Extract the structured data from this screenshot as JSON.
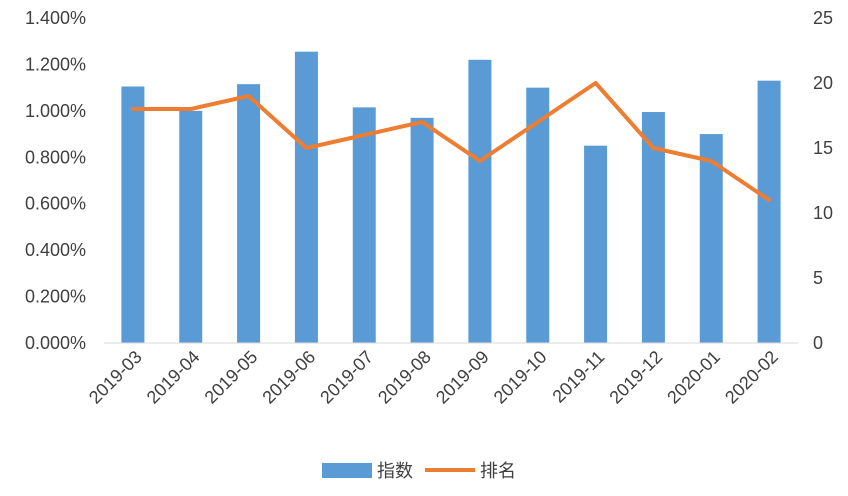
{
  "chart_data": {
    "type": "bar+line",
    "categories": [
      "2019-03",
      "2019-04",
      "2019-05",
      "2019-06",
      "2019-07",
      "2019-08",
      "2019-09",
      "2019-10",
      "2019-11",
      "2019-12",
      "2020-01",
      "2020-02"
    ],
    "series": [
      {
        "name": "指数",
        "type": "bar",
        "axis": "left",
        "color": "#5b9bd5",
        "values": [
          1.105,
          1.0,
          1.115,
          1.255,
          1.015,
          0.97,
          1.22,
          1.1,
          0.85,
          0.995,
          0.9,
          1.13
        ]
      },
      {
        "name": "排名",
        "type": "line",
        "axis": "right",
        "color": "#ed7d31",
        "values": [
          18,
          18,
          19,
          15,
          16,
          17,
          14,
          17,
          20,
          15,
          14,
          11
        ]
      }
    ],
    "y_left": {
      "ylim": [
        0,
        1.4
      ],
      "ticks": [
        "0.000%",
        "0.200%",
        "0.400%",
        "0.600%",
        "0.800%",
        "1.000%",
        "1.200%",
        "1.400%"
      ]
    },
    "y_right": {
      "ylim": [
        0,
        25
      ],
      "ticks": [
        "0",
        "5",
        "10",
        "15",
        "20",
        "25"
      ]
    },
    "legend": {
      "placement": "bottom",
      "items": [
        "指数",
        "排名"
      ]
    },
    "grid": false
  }
}
